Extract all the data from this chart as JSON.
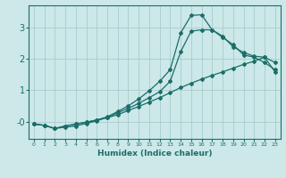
{
  "xlabel": "Humidex (Indice chaleur)",
  "bg_color": "#cce8e8",
  "grid_color": "#aacccc",
  "line_color": "#1a6e6a",
  "xlim": [
    -0.5,
    23.5
  ],
  "ylim": [
    -0.55,
    3.7
  ],
  "x_ticks": [
    0,
    1,
    2,
    3,
    4,
    5,
    6,
    7,
    8,
    9,
    10,
    11,
    12,
    13,
    14,
    15,
    16,
    17,
    18,
    19,
    20,
    21,
    22,
    23
  ],
  "y_ticks": [
    0,
    1,
    2,
    3
  ],
  "y_tick_labels": [
    "-0",
    "1",
    "2",
    "3"
  ],
  "curve1_x": [
    0,
    1,
    2,
    3,
    4,
    5,
    6,
    7,
    8,
    9,
    10,
    11,
    12,
    13,
    14,
    15,
    16,
    17,
    18,
    19,
    20,
    21,
    22,
    23
  ],
  "curve1_y": [
    -0.08,
    -0.12,
    -0.22,
    -0.14,
    -0.08,
    -0.02,
    0.05,
    0.12,
    0.22,
    0.35,
    0.48,
    0.62,
    0.76,
    0.92,
    1.08,
    1.22,
    1.35,
    1.47,
    1.58,
    1.7,
    1.82,
    1.92,
    2.05,
    1.58
  ],
  "curve2_x": [
    0,
    1,
    2,
    3,
    4,
    5,
    6,
    7,
    8,
    9,
    10,
    11,
    12,
    13,
    14,
    15,
    16,
    17,
    18,
    19,
    20,
    21,
    22,
    23
  ],
  "curve2_y": [
    -0.08,
    -0.12,
    -0.22,
    -0.14,
    -0.08,
    -0.02,
    0.05,
    0.15,
    0.32,
    0.5,
    0.72,
    0.98,
    1.28,
    1.65,
    2.82,
    3.38,
    3.4,
    2.92,
    2.72,
    2.38,
    2.2,
    2.08,
    2.05,
    1.88
  ],
  "curve3_x": [
    0,
    1,
    2,
    3,
    4,
    5,
    6,
    7,
    8,
    9,
    10,
    11,
    12,
    13,
    14,
    15,
    16,
    17,
    18,
    19,
    20,
    21,
    22,
    23
  ],
  "curve3_y": [
    -0.08,
    -0.12,
    -0.22,
    -0.18,
    -0.14,
    -0.06,
    0.02,
    0.14,
    0.28,
    0.42,
    0.58,
    0.76,
    0.95,
    1.28,
    2.22,
    2.88,
    2.92,
    2.92,
    2.68,
    2.45,
    2.12,
    2.05,
    1.88,
    1.65
  ]
}
